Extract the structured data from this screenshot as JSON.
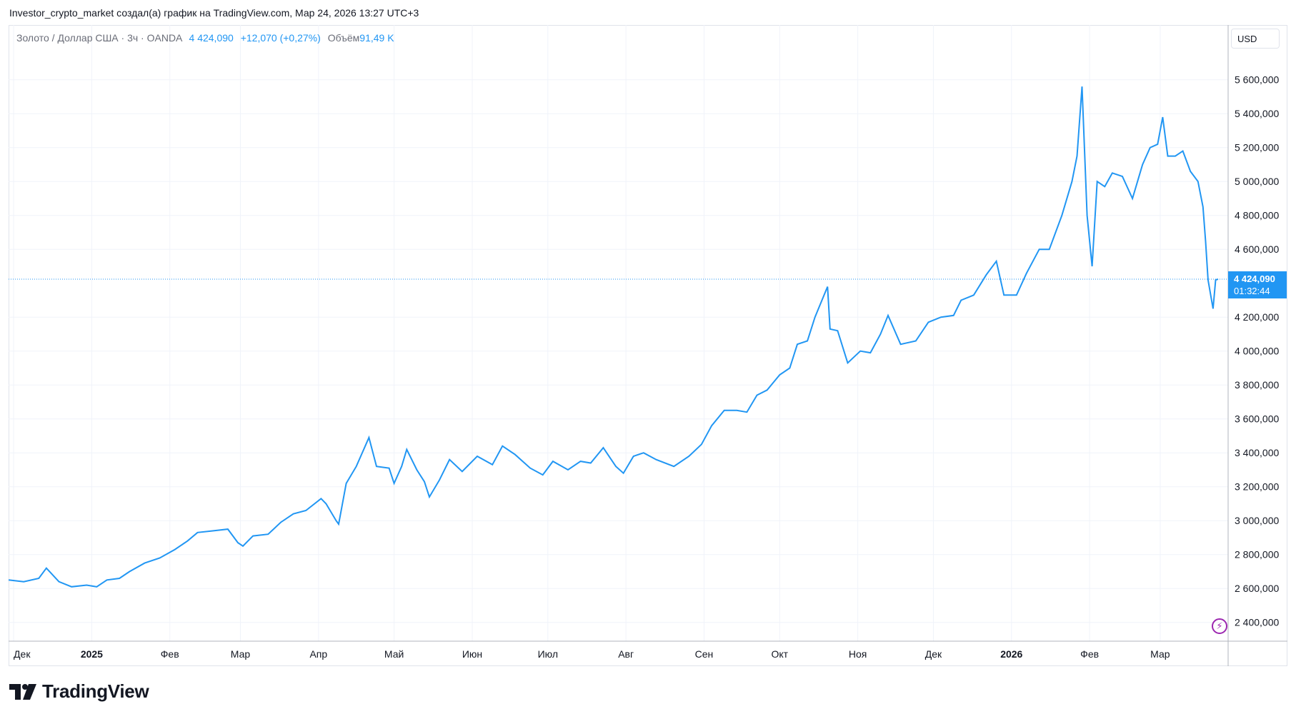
{
  "header": {
    "attribution": "Investor_crypto_market создал(а) график на TradingView.com, Мар 24, 2026 13:27 UTC+3"
  },
  "legend": {
    "symbol": "Золото / Доллар США · 3ч · OANDA",
    "price": "4 424,090",
    "change": "+12,070 (+0,27%)",
    "volume_label": "Объём",
    "volume_value": "91,49 K"
  },
  "currency": "USD",
  "price_badge": {
    "price": "4 424,090",
    "countdown": "01:32:44"
  },
  "brand": {
    "name": "TradingView"
  },
  "colors": {
    "line": "#2196f3",
    "grid": "#f0f3fa",
    "badge": "#2196f3"
  },
  "icons": [
    "tradingview-logo-icon",
    "lightning-icon"
  ],
  "chart_data": {
    "type": "line",
    "y_scale": "linear",
    "ylim": [
      2300000,
      5800000
    ],
    "y_ticks": [
      2400000,
      2600000,
      2800000,
      3000000,
      3200000,
      3400000,
      3600000,
      3800000,
      4000000,
      4200000,
      4600000,
      4800000,
      5000000,
      5200000,
      5400000,
      5600000
    ],
    "y_tick_labels": [
      "2 400,000",
      "2 600,000",
      "2 800,000",
      "3 000,000",
      "3 200,000",
      "3 400,000",
      "3 600,000",
      "3 800,000",
      "4 000,000",
      "4 200,000",
      "4 600,000",
      "4 800,000",
      "5 000,000",
      "5 200,000",
      "5 400,000",
      "5 600,000"
    ],
    "x_range": [
      "2024-11-29",
      "2026-03-24"
    ],
    "x_ticks": [
      {
        "date": "2024-12-01",
        "label": "Дек",
        "bold": false
      },
      {
        "date": "2025-01-01",
        "label": "2025",
        "bold": true
      },
      {
        "date": "2025-02-01",
        "label": "Фев",
        "bold": false
      },
      {
        "date": "2025-03-01",
        "label": "Мар",
        "bold": false
      },
      {
        "date": "2025-04-01",
        "label": "Апр",
        "bold": false
      },
      {
        "date": "2025-05-01",
        "label": "Май",
        "bold": false
      },
      {
        "date": "2025-06-01",
        "label": "Июн",
        "bold": false
      },
      {
        "date": "2025-07-01",
        "label": "Июл",
        "bold": false
      },
      {
        "date": "2025-08-01",
        "label": "Авг",
        "bold": false
      },
      {
        "date": "2025-09-01",
        "label": "Сен",
        "bold": false
      },
      {
        "date": "2025-10-01",
        "label": "Окт",
        "bold": false
      },
      {
        "date": "2025-11-01",
        "label": "Ноя",
        "bold": false
      },
      {
        "date": "2025-12-01",
        "label": "Дек",
        "bold": false
      },
      {
        "date": "2026-01-01",
        "label": "2026",
        "bold": true
      },
      {
        "date": "2026-02-01",
        "label": "Фев",
        "bold": false
      },
      {
        "date": "2026-03-01",
        "label": "Мар",
        "bold": false
      }
    ],
    "current_price": 4424090,
    "series": [
      {
        "points": [
          [
            "2024-11-29",
            2650000
          ],
          [
            "2024-12-05",
            2640000
          ],
          [
            "2024-12-11",
            2660000
          ],
          [
            "2024-12-14",
            2720000
          ],
          [
            "2024-12-19",
            2640000
          ],
          [
            "2024-12-24",
            2610000
          ],
          [
            "2024-12-30",
            2620000
          ],
          [
            "2025-01-03",
            2610000
          ],
          [
            "2025-01-07",
            2650000
          ],
          [
            "2025-01-12",
            2660000
          ],
          [
            "2025-01-16",
            2700000
          ],
          [
            "2025-01-22",
            2750000
          ],
          [
            "2025-01-28",
            2780000
          ],
          [
            "2025-02-03",
            2830000
          ],
          [
            "2025-02-08",
            2880000
          ],
          [
            "2025-02-12",
            2930000
          ],
          [
            "2025-02-18",
            2940000
          ],
          [
            "2025-02-24",
            2950000
          ],
          [
            "2025-02-28",
            2870000
          ],
          [
            "2025-03-02",
            2850000
          ],
          [
            "2025-03-06",
            2910000
          ],
          [
            "2025-03-12",
            2920000
          ],
          [
            "2025-03-17",
            2990000
          ],
          [
            "2025-03-22",
            3040000
          ],
          [
            "2025-03-27",
            3060000
          ],
          [
            "2025-04-02",
            3130000
          ],
          [
            "2025-04-04",
            3100000
          ],
          [
            "2025-04-08",
            3000000
          ],
          [
            "2025-04-09",
            2980000
          ],
          [
            "2025-04-12",
            3220000
          ],
          [
            "2025-04-16",
            3320000
          ],
          [
            "2025-04-21",
            3490000
          ],
          [
            "2025-04-24",
            3320000
          ],
          [
            "2025-04-29",
            3310000
          ],
          [
            "2025-05-01",
            3220000
          ],
          [
            "2025-05-04",
            3320000
          ],
          [
            "2025-05-06",
            3420000
          ],
          [
            "2025-05-10",
            3300000
          ],
          [
            "2025-05-13",
            3230000
          ],
          [
            "2025-05-15",
            3140000
          ],
          [
            "2025-05-19",
            3240000
          ],
          [
            "2025-05-23",
            3360000
          ],
          [
            "2025-05-28",
            3290000
          ],
          [
            "2025-06-03",
            3380000
          ],
          [
            "2025-06-09",
            3330000
          ],
          [
            "2025-06-13",
            3440000
          ],
          [
            "2025-06-18",
            3390000
          ],
          [
            "2025-06-24",
            3310000
          ],
          [
            "2025-06-29",
            3270000
          ],
          [
            "2025-07-03",
            3350000
          ],
          [
            "2025-07-09",
            3300000
          ],
          [
            "2025-07-14",
            3350000
          ],
          [
            "2025-07-18",
            3340000
          ],
          [
            "2025-07-23",
            3430000
          ],
          [
            "2025-07-28",
            3320000
          ],
          [
            "2025-07-31",
            3280000
          ],
          [
            "2025-08-04",
            3380000
          ],
          [
            "2025-08-08",
            3400000
          ],
          [
            "2025-08-13",
            3360000
          ],
          [
            "2025-08-20",
            3320000
          ],
          [
            "2025-08-26",
            3380000
          ],
          [
            "2025-08-31",
            3450000
          ],
          [
            "2025-09-04",
            3560000
          ],
          [
            "2025-09-09",
            3650000
          ],
          [
            "2025-09-14",
            3650000
          ],
          [
            "2025-09-18",
            3640000
          ],
          [
            "2025-09-22",
            3740000
          ],
          [
            "2025-09-26",
            3770000
          ],
          [
            "2025-10-01",
            3860000
          ],
          [
            "2025-10-05",
            3900000
          ],
          [
            "2025-10-08",
            4040000
          ],
          [
            "2025-10-12",
            4060000
          ],
          [
            "2025-10-15",
            4200000
          ],
          [
            "2025-10-20",
            4380000
          ],
          [
            "2025-10-21",
            4130000
          ],
          [
            "2025-10-24",
            4120000
          ],
          [
            "2025-10-28",
            3930000
          ],
          [
            "2025-11-02",
            4000000
          ],
          [
            "2025-11-06",
            3990000
          ],
          [
            "2025-11-10",
            4100000
          ],
          [
            "2025-11-13",
            4210000
          ],
          [
            "2025-11-18",
            4040000
          ],
          [
            "2025-11-24",
            4060000
          ],
          [
            "2025-11-29",
            4170000
          ],
          [
            "2025-12-04",
            4200000
          ],
          [
            "2025-12-09",
            4210000
          ],
          [
            "2025-12-12",
            4300000
          ],
          [
            "2025-12-17",
            4330000
          ],
          [
            "2025-12-22",
            4450000
          ],
          [
            "2025-12-26",
            4530000
          ],
          [
            "2025-12-29",
            4330000
          ],
          [
            "2026-01-03",
            4330000
          ],
          [
            "2026-01-07",
            4460000
          ],
          [
            "2026-01-12",
            4600000
          ],
          [
            "2026-01-16",
            4600000
          ],
          [
            "2026-01-21",
            4800000
          ],
          [
            "2026-01-25",
            5000000
          ],
          [
            "2026-01-27",
            5150000
          ],
          [
            "2026-01-29",
            5560000
          ],
          [
            "2026-01-31",
            4800000
          ],
          [
            "2026-02-02",
            4500000
          ],
          [
            "2026-02-04",
            5000000
          ],
          [
            "2026-02-07",
            4970000
          ],
          [
            "2026-02-10",
            5050000
          ],
          [
            "2026-02-14",
            5030000
          ],
          [
            "2026-02-18",
            4900000
          ],
          [
            "2026-02-22",
            5100000
          ],
          [
            "2026-02-25",
            5200000
          ],
          [
            "2026-02-28",
            5220000
          ],
          [
            "2026-03-02",
            5380000
          ],
          [
            "2026-03-04",
            5150000
          ],
          [
            "2026-03-07",
            5150000
          ],
          [
            "2026-03-10",
            5180000
          ],
          [
            "2026-03-13",
            5060000
          ],
          [
            "2026-03-16",
            5000000
          ],
          [
            "2026-03-18",
            4850000
          ],
          [
            "2026-03-19",
            4650000
          ],
          [
            "2026-03-20",
            4420000
          ],
          [
            "2026-03-22",
            4250000
          ],
          [
            "2026-03-23",
            4420000
          ],
          [
            "2026-03-24",
            4424090
          ]
        ]
      }
    ]
  }
}
